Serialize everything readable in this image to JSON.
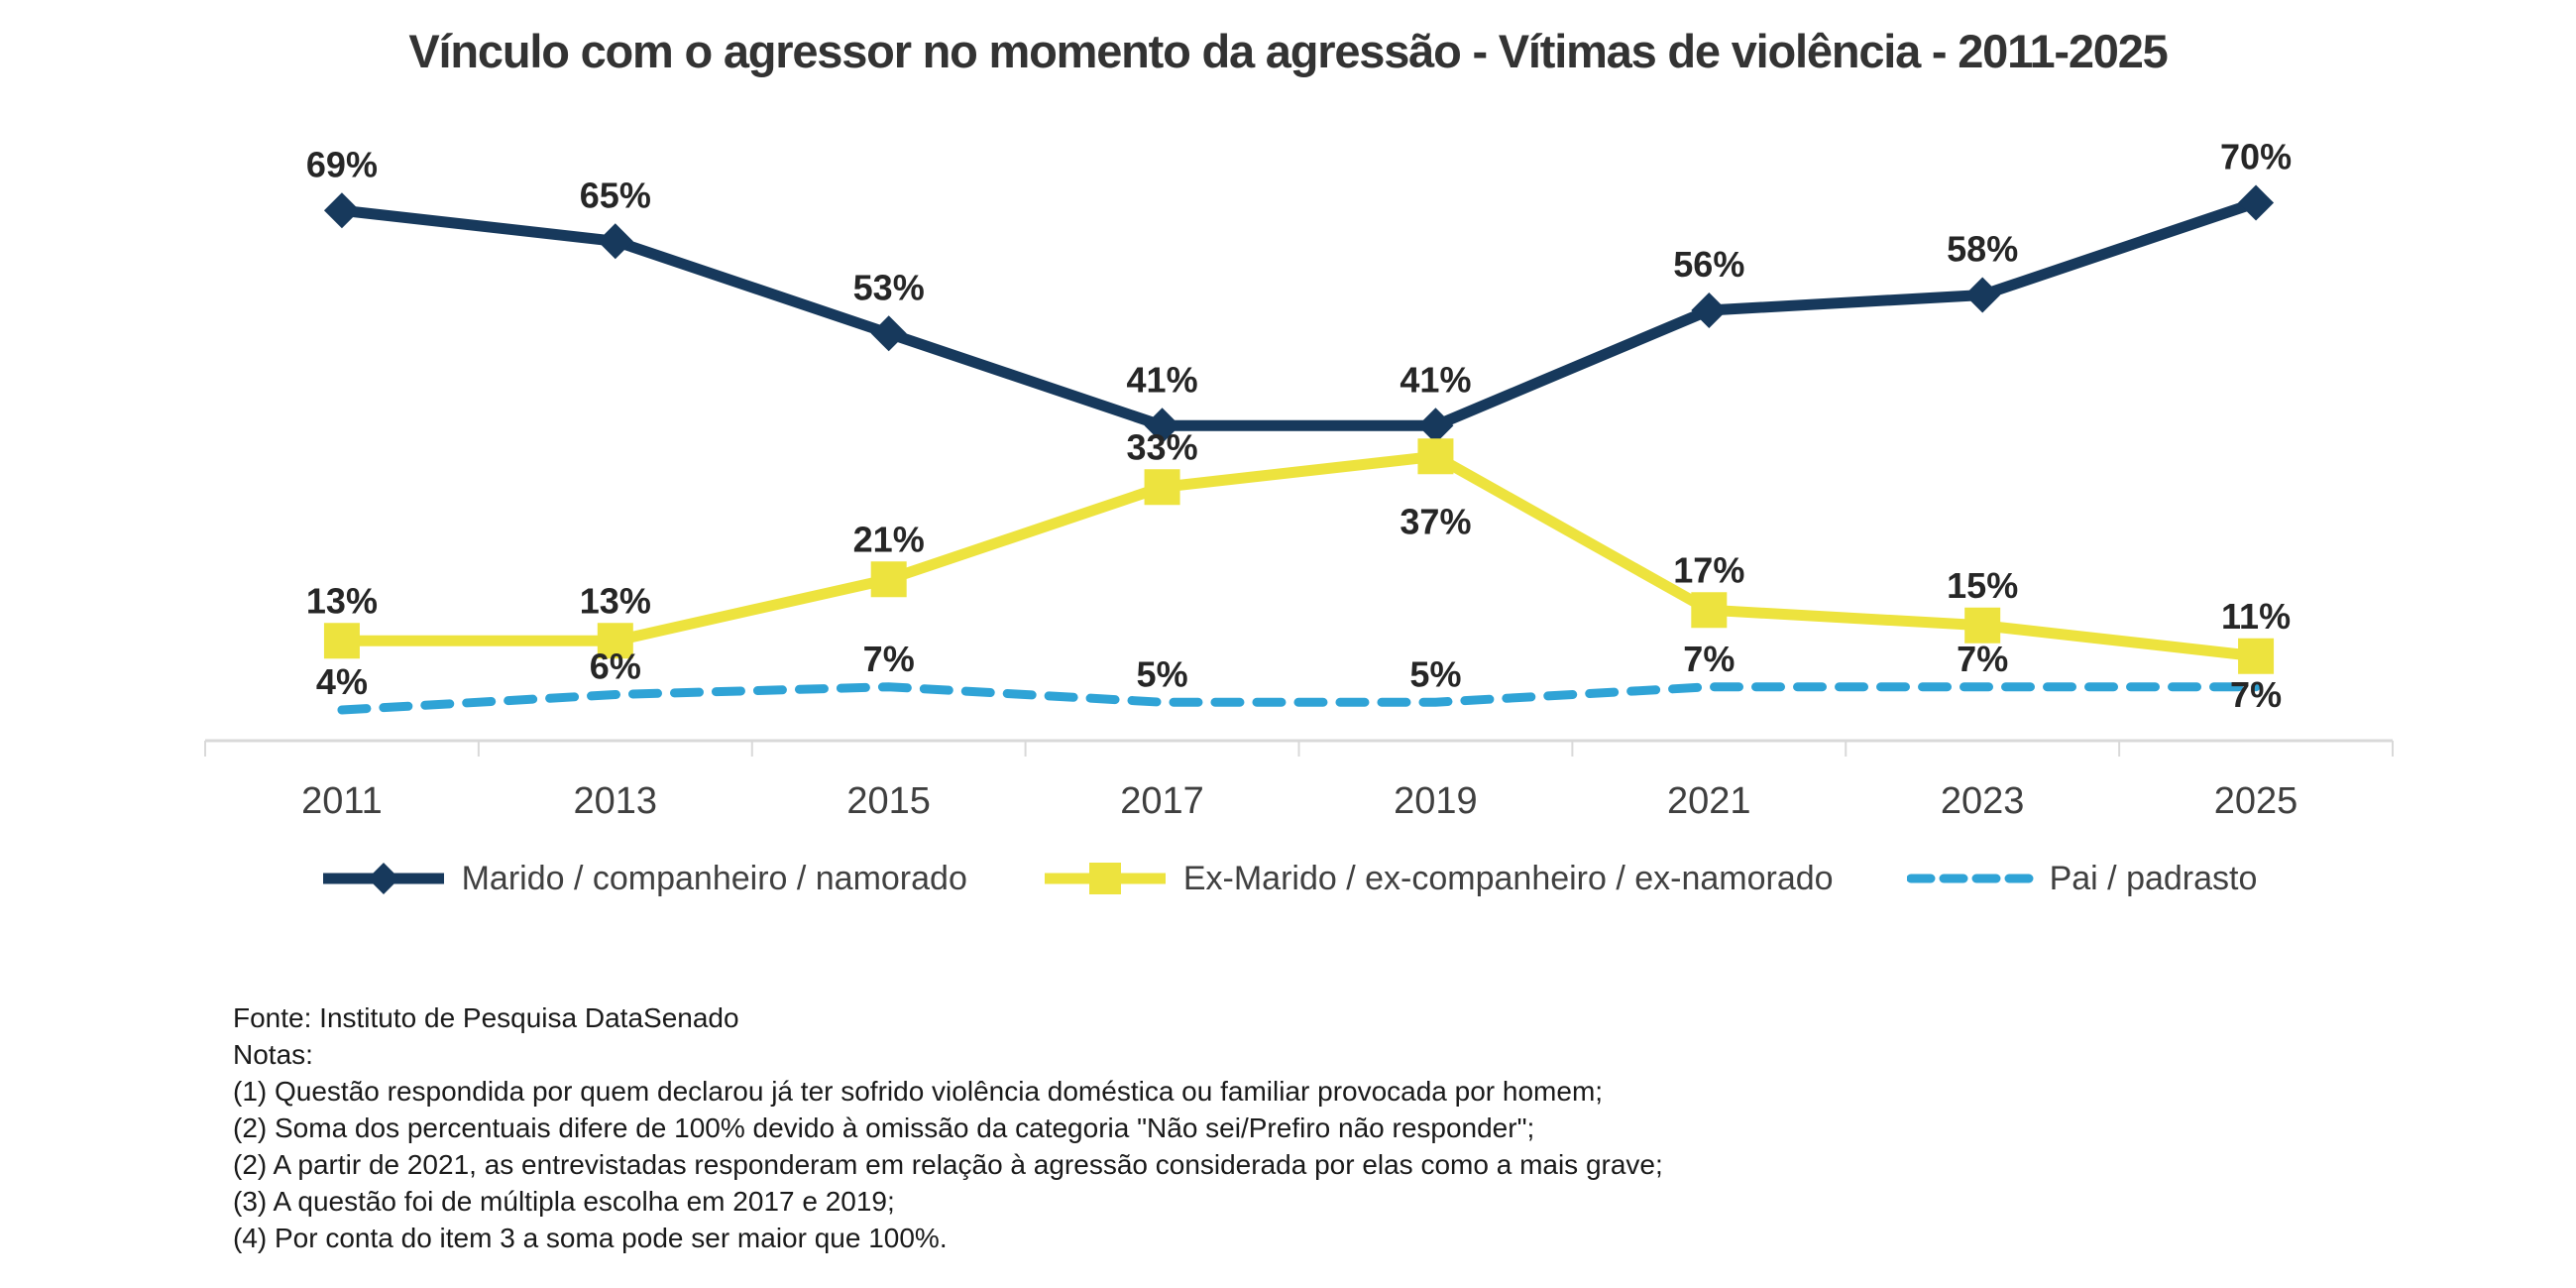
{
  "title": "Vínculo com o agressor no momento da agressão - Vítimas de violência - 2011-2025",
  "chart_data": {
    "type": "line",
    "categories": [
      "2011",
      "2013",
      "2015",
      "2017",
      "2019",
      "2021",
      "2023",
      "2025"
    ],
    "series": [
      {
        "name": "Marido / companheiro / namorado",
        "values": [
          69,
          65,
          53,
          41,
          41,
          56,
          58,
          70
        ],
        "color": "#17395c",
        "marker": "diamond",
        "dashed": false,
        "label_positions": [
          "above",
          "above",
          "above",
          "above",
          "above",
          "above",
          "above",
          "above"
        ]
      },
      {
        "name": "Ex-Marido / ex-companheiro / ex-namorado",
        "values": [
          13,
          13,
          21,
          33,
          37,
          17,
          15,
          11
        ],
        "color": "#ede33e",
        "marker": "square",
        "dashed": false,
        "label_positions": [
          "above",
          "above",
          "above",
          "above",
          "below",
          "above",
          "above",
          "above"
        ]
      },
      {
        "name": "Pai / padrasto",
        "values": [
          4,
          6,
          7,
          5,
          5,
          7,
          7,
          7
        ],
        "color": "#2fa3d6",
        "marker": "none",
        "dashed": true,
        "label_positions": [
          "above",
          "above",
          "above",
          "above",
          "above",
          "above",
          "above",
          "below"
        ]
      }
    ],
    "data_label_format": "{v}%",
    "data_label_color": "#262626",
    "axis_line_color": "#d9d9d9",
    "axis_label_color": "#3f3f3f",
    "ylim": [
      0,
      78
    ],
    "grid": "off",
    "legend_position": "bottom",
    "y_axis_visible": false
  },
  "notes": {
    "lines": [
      "Fonte: Instituto de Pesquisa DataSenado",
      "Notas:",
      "(1) Questão respondida por quem declarou já ter sofrido violência doméstica ou familiar provocada por homem;",
      "(2) Soma dos percentuais difere de 100% devido à omissão da categoria \"Não sei/Prefiro não responder\";",
      "(2) A partir de 2021, as entrevistadas responderam em relação à agressão considerada por elas como a mais grave;",
      "(3) A questão foi de múltipla escolha em 2017 e 2019;",
      "(4) Por conta do item 3 a soma pode ser maior que 100%."
    ]
  }
}
